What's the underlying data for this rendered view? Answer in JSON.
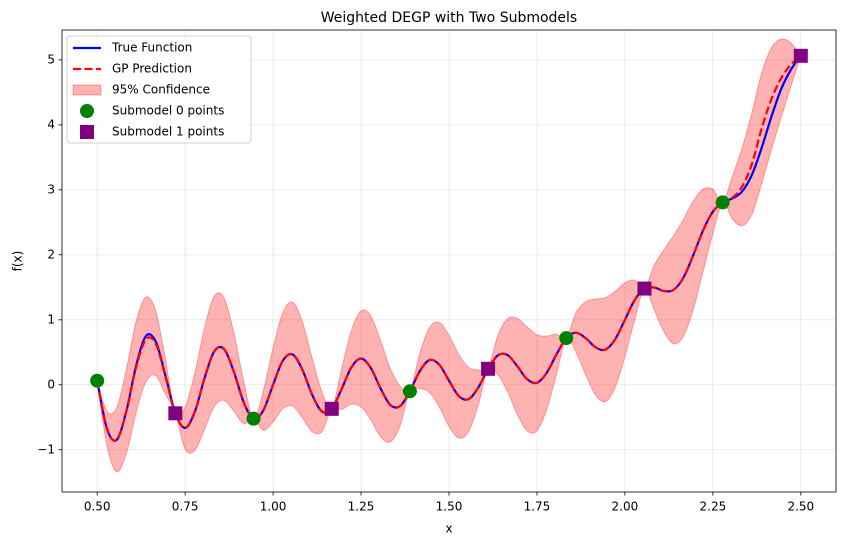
{
  "chart_data": {
    "type": "line",
    "title": "Weighted DEGP with Two Submodels",
    "xlabel": "x",
    "ylabel": "f(x)",
    "xlim": [
      0.4,
      2.6
    ],
    "ylim": [
      -1.65,
      5.46
    ],
    "xticks": [
      {
        "value": 0.5,
        "label": "0.50"
      },
      {
        "value": 0.75,
        "label": "0.75"
      },
      {
        "value": 1.0,
        "label": "1.00"
      },
      {
        "value": 1.25,
        "label": "1.25"
      },
      {
        "value": 1.5,
        "label": "1.50"
      },
      {
        "value": 1.75,
        "label": "1.75"
      },
      {
        "value": 2.0,
        "label": "2.00"
      },
      {
        "value": 2.25,
        "label": "2.25"
      },
      {
        "value": 2.5,
        "label": "2.50"
      }
    ],
    "yticks": [
      {
        "value": -1,
        "label": "−1"
      },
      0,
      1,
      2,
      3,
      4,
      5
    ],
    "grid": true,
    "legend": "upper left",
    "x": [
      0.5,
      0.5278,
      0.5556,
      0.5833,
      0.6111,
      0.6389,
      0.6667,
      0.6944,
      0.7222,
      0.75,
      0.7778,
      0.8056,
      0.8333,
      0.8611,
      0.8889,
      0.9167,
      0.9444,
      0.9722,
      1.0,
      1.0278,
      1.0556,
      1.0833,
      1.1111,
      1.1389,
      1.1667,
      1.1944,
      1.2222,
      1.25,
      1.2778,
      1.3056,
      1.3333,
      1.3611,
      1.3889,
      1.4167,
      1.4444,
      1.4722,
      1.5,
      1.5278,
      1.5556,
      1.5833,
      1.6111,
      1.6389,
      1.6667,
      1.6944,
      1.7222,
      1.75,
      1.7778,
      1.8056,
      1.8333,
      1.8611,
      1.8889,
      1.9167,
      1.9444,
      1.9722,
      2.0,
      2.0278,
      2.0556,
      2.0833,
      2.1111,
      2.1389,
      2.1667,
      2.1944,
      2.2222,
      2.25,
      2.2778,
      2.3056,
      2.3333,
      2.3611,
      2.3889,
      2.4167,
      2.4444,
      2.4722,
      2.5
    ],
    "series": [
      {
        "name": "True Function",
        "kind": "line",
        "color": "#0000ff",
        "dash": false,
        "values": [
          0.063,
          -0.676,
          -0.847,
          -0.398,
          0.303,
          0.752,
          0.662,
          0.134,
          -0.439,
          -0.663,
          -0.411,
          0.109,
          0.52,
          0.546,
          0.193,
          -0.273,
          -0.521,
          -0.394,
          0,
          0.373,
          0.467,
          0.231,
          -0.154,
          -0.412,
          -0.37,
          -0.071,
          0.265,
          0.404,
          0.258,
          -0.058,
          -0.312,
          -0.328,
          -0.1,
          0.207,
          0.38,
          0.31,
          0.063,
          -0.173,
          -0.221,
          -0.042,
          0.246,
          0.453,
          0.457,
          0.284,
          0.086,
          0.031,
          0.185,
          0.469,
          0.719,
          0.802,
          0.715,
          0.576,
          0.542,
          0.699,
          1.0,
          1.305,
          1.481,
          1.497,
          1.443,
          1.463,
          1.653,
          1.996,
          2.376,
          2.664,
          2.807,
          2.868,
          2.975,
          3.233,
          3.649,
          4.131,
          4.555,
          4.853,
          5.063
        ]
      },
      {
        "name": "GP Prediction",
        "kind": "line",
        "color": "#ff0000",
        "dash": true,
        "values": [
          0.063,
          -0.676,
          -0.847,
          -0.398,
          0.28,
          0.7,
          0.63,
          0.12,
          -0.439,
          -0.663,
          -0.411,
          0.109,
          0.52,
          0.546,
          0.193,
          -0.273,
          -0.521,
          -0.394,
          0,
          0.373,
          0.467,
          0.231,
          -0.154,
          -0.412,
          -0.37,
          -0.071,
          0.265,
          0.404,
          0.258,
          -0.058,
          -0.312,
          -0.328,
          -0.1,
          0.207,
          0.38,
          0.31,
          0.063,
          -0.173,
          -0.221,
          -0.042,
          0.246,
          0.453,
          0.457,
          0.284,
          0.086,
          0.031,
          0.185,
          0.469,
          0.719,
          0.802,
          0.715,
          0.576,
          0.542,
          0.699,
          1.0,
          1.305,
          1.481,
          1.497,
          1.443,
          1.463,
          1.653,
          1.996,
          2.376,
          2.664,
          2.807,
          2.88,
          3.05,
          3.4,
          3.95,
          4.4,
          4.72,
          4.93,
          5.063
        ]
      },
      {
        "name": "95% Confidence",
        "kind": "band",
        "color": "#ff0000",
        "opacity": 0.3,
        "upper": [
          0.06,
          -0.41,
          -0.35,
          0.25,
          0.98,
          1.35,
          1.13,
          0.39,
          -0.44,
          -0.34,
          0.19,
          0.89,
          1.37,
          1.33,
          0.79,
          0.05,
          -0.52,
          -0.09,
          0.57,
          1.11,
          1.27,
          0.97,
          0.41,
          -0.11,
          -0.37,
          0.24,
          0.83,
          1.14,
          1.06,
          0.68,
          0.25,
          -0.02,
          -0.1,
          0.48,
          0.88,
          0.96,
          0.76,
          0.47,
          0.27,
          0.23,
          0.25,
          0.76,
          1.02,
          1.02,
          0.89,
          0.77,
          0.75,
          0.78,
          0.72,
          1.11,
          1.28,
          1.32,
          1.34,
          1.44,
          1.57,
          1.61,
          1.48,
          1.84,
          2.08,
          2.3,
          2.55,
          2.83,
          3.01,
          3.01,
          2.81,
          3.21,
          3.65,
          4.19,
          4.8,
          5.19,
          5.32,
          5.26,
          5.06
        ],
        "lower": [
          0.06,
          -0.94,
          -1.34,
          -1.05,
          -0.42,
          0.05,
          0.14,
          -0.15,
          -0.44,
          -0.99,
          -1.01,
          -0.68,
          -0.33,
          -0.24,
          -0.41,
          -0.6,
          -0.52,
          -0.7,
          -0.57,
          -0.37,
          -0.33,
          -0.51,
          -0.72,
          -0.72,
          -0.37,
          -0.38,
          -0.3,
          -0.34,
          -0.54,
          -0.8,
          -0.88,
          -0.63,
          -0.1,
          -0.06,
          -0.12,
          -0.34,
          -0.64,
          -0.82,
          -0.72,
          -0.31,
          0.25,
          0.15,
          -0.11,
          -0.46,
          -0.71,
          -0.71,
          -0.38,
          0.16,
          0.72,
          0.5,
          0.15,
          -0.16,
          -0.26,
          -0.04,
          0.43,
          1.0,
          1.48,
          1.15,
          0.81,
          0.63,
          0.75,
          1.16,
          1.74,
          2.32,
          2.81,
          2.55,
          2.45,
          2.62,
          3.1,
          3.62,
          4.12,
          4.6,
          5.06
        ]
      },
      {
        "name": "Submodel 0 points",
        "kind": "scatter",
        "marker": "circle",
        "color": "#008000",
        "x": [
          0.5,
          0.9444,
          1.3889,
          1.8333,
          2.2778
        ],
        "values": [
          0.063,
          -0.521,
          -0.1,
          0.719,
          2.807
        ]
      },
      {
        "name": "Submodel 1 points",
        "kind": "scatter",
        "marker": "square",
        "color": "#800080",
        "x": [
          0.7222,
          1.1667,
          1.6111,
          2.0556,
          2.5
        ],
        "values": [
          -0.439,
          -0.37,
          0.246,
          1.481,
          5.063
        ]
      }
    ]
  }
}
